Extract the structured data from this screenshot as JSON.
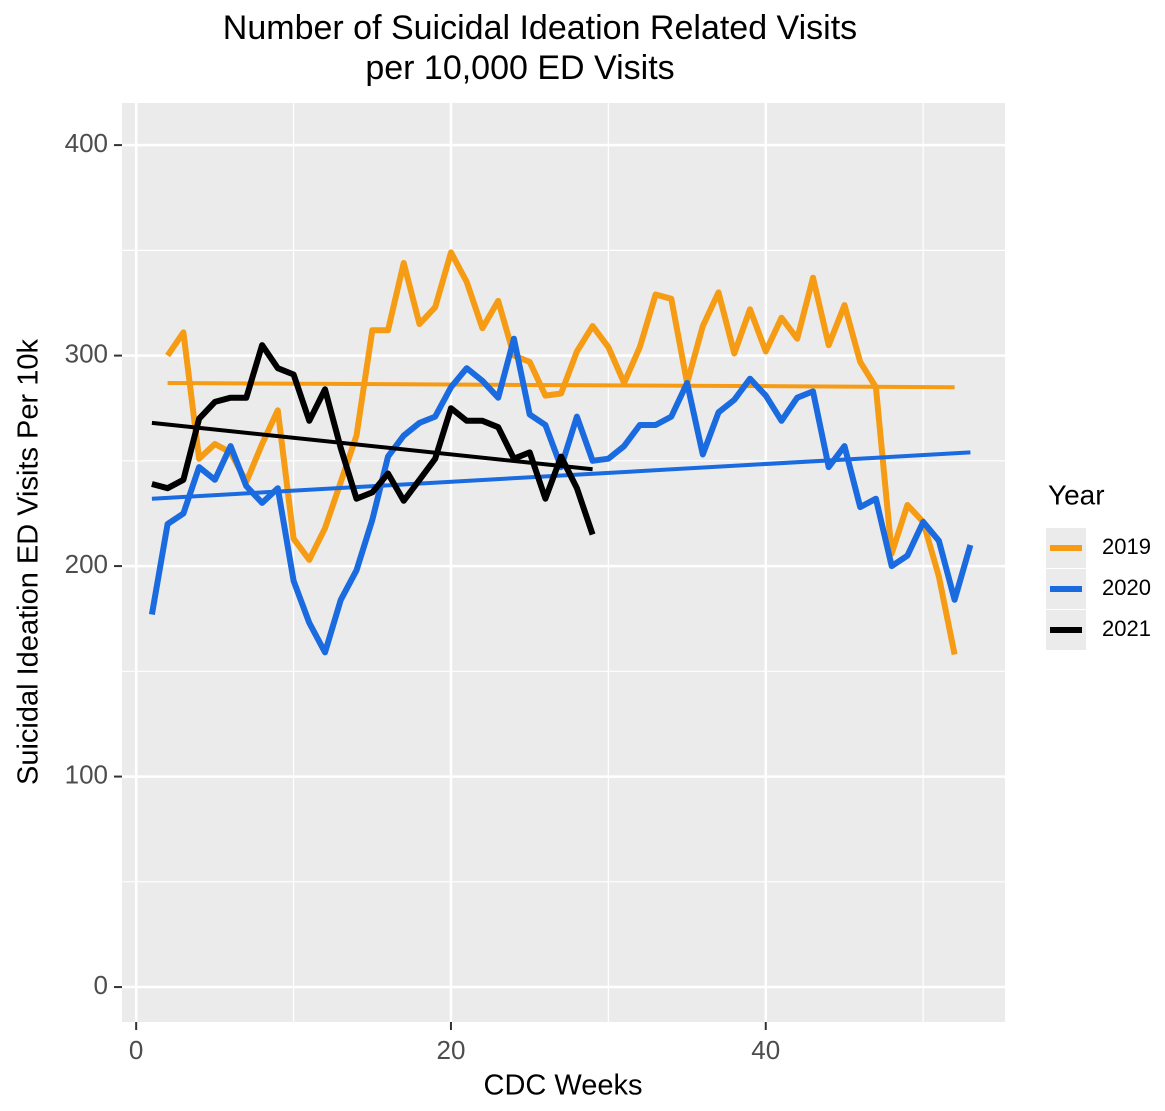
{
  "chart_data": {
    "type": "line",
    "title": [
      "Number of Suicidal Ideation Related Visits",
      "per 10,000 ED Visits"
    ],
    "x_label": "CDC Weeks",
    "y_label": "Suicidal Ideation ED Visits Per 10k",
    "xlim": [
      -0.9,
      55.2
    ],
    "ylim": [
      -16.6,
      420
    ],
    "xticks": [
      0,
      20,
      40
    ],
    "yticks": [
      0,
      100,
      200,
      300,
      400
    ],
    "minor_xticks": [
      10,
      30,
      50
    ],
    "minor_yticks": [
      50,
      150,
      250,
      350
    ],
    "grid": true,
    "legend_title": "Year",
    "legend_position": "right",
    "series": [
      {
        "name": "2019",
        "color": "#f59b14",
        "x": [
          2,
          3,
          4,
          5,
          6,
          7,
          8,
          9,
          10,
          11,
          12,
          13,
          14,
          15,
          16,
          17,
          18,
          19,
          20,
          21,
          22,
          23,
          24,
          25,
          26,
          27,
          28,
          29,
          30,
          31,
          32,
          33,
          34,
          35,
          36,
          37,
          38,
          39,
          40,
          41,
          42,
          43,
          44,
          45,
          46,
          47,
          48,
          49,
          50,
          51,
          52
        ],
        "values": [
          300,
          311,
          251,
          258,
          254,
          240,
          258,
          274,
          213,
          203,
          218,
          240,
          262,
          312,
          312,
          344,
          315,
          323,
          349,
          335,
          313,
          326,
          300,
          297,
          281,
          282,
          302,
          314,
          304,
          287,
          304,
          329,
          327,
          287,
          314,
          330,
          301,
          322,
          302,
          318,
          308,
          337,
          305,
          324,
          297,
          285,
          206,
          229,
          221,
          195,
          158
        ],
        "trend": {
          "x": [
            2,
            52
          ],
          "values": [
            287,
            285
          ]
        }
      },
      {
        "name": "2020",
        "color": "#1a6ae0",
        "x": [
          1,
          2,
          3,
          4,
          5,
          6,
          7,
          8,
          9,
          10,
          11,
          12,
          13,
          14,
          15,
          16,
          17,
          18,
          19,
          20,
          21,
          22,
          23,
          24,
          25,
          26,
          27,
          28,
          29,
          30,
          31,
          32,
          33,
          34,
          35,
          36,
          37,
          38,
          39,
          40,
          41,
          42,
          43,
          44,
          45,
          46,
          47,
          48,
          49,
          50,
          51,
          52,
          53
        ],
        "values": [
          177,
          220,
          225,
          247,
          241,
          257,
          238,
          230,
          237,
          193,
          173,
          159,
          184,
          198,
          222,
          252,
          262,
          268,
          271,
          285,
          294,
          288,
          280,
          308,
          272,
          267,
          247,
          271,
          250,
          251,
          257,
          267,
          267,
          271,
          287,
          253,
          273,
          279,
          289,
          281,
          269,
          280,
          283,
          247,
          257,
          228,
          232,
          200,
          205,
          221,
          212,
          184,
          210
        ],
        "trend": {
          "x": [
            1,
            53
          ],
          "values": [
            232,
            254
          ]
        }
      },
      {
        "name": "2021",
        "color": "#000000",
        "x": [
          1,
          2,
          3,
          4,
          5,
          6,
          7,
          8,
          9,
          10,
          11,
          12,
          13,
          14,
          15,
          16,
          17,
          18,
          19,
          20,
          21,
          22,
          23,
          24,
          25,
          26,
          27,
          28,
          29
        ],
        "values": [
          239,
          237,
          241,
          270,
          278,
          280,
          280,
          305,
          294,
          291,
          269,
          284,
          256,
          232,
          235,
          244,
          231,
          241,
          251,
          275,
          269,
          269,
          266,
          251,
          254,
          232,
          252,
          237,
          215
        ],
        "trend": {
          "x": [
            1,
            29
          ],
          "values": [
            268,
            246
          ]
        }
      }
    ]
  }
}
